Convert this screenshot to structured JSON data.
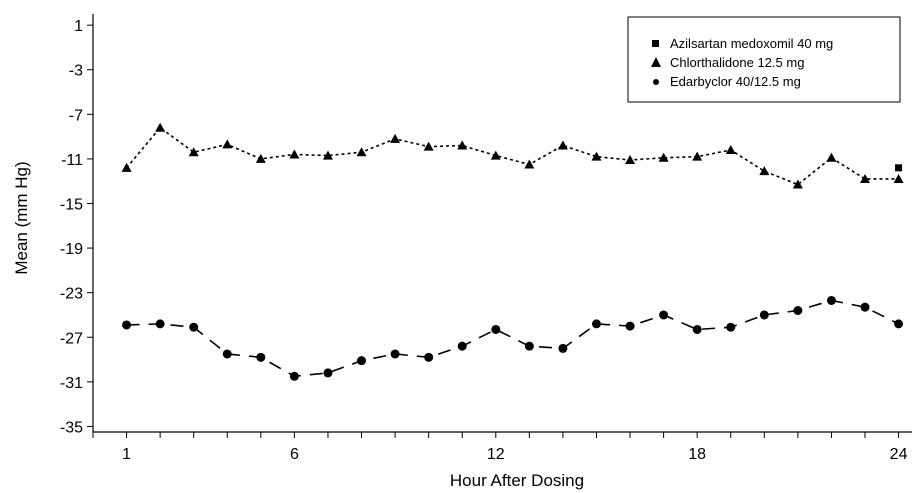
{
  "chart_data": {
    "type": "line",
    "xlabel": "Hour After Dosing",
    "ylabel": "Mean (mm Hg)",
    "xlim": [
      0,
      24.4
    ],
    "ylim": [
      -35.5,
      2
    ],
    "x_ticks": [
      1,
      6,
      12,
      18,
      24
    ],
    "y_ticks": [
      1,
      -3,
      -7,
      -11,
      -15,
      -19,
      -23,
      -27,
      -31,
      -35
    ],
    "legend_position": "top-right",
    "grid": false,
    "series": [
      {
        "name": "Azilsartan medoxomil 40 mg",
        "marker": "square",
        "x": [
          24
        ],
        "y": [
          -11.8
        ]
      },
      {
        "name": "Chlorthalidone 12.5 mg",
        "marker": "triangle",
        "x": [
          1,
          2,
          3,
          4,
          5,
          6,
          7,
          8,
          9,
          10,
          11,
          12,
          13,
          14,
          15,
          16,
          17,
          18,
          19,
          20,
          21,
          22,
          23,
          24
        ],
        "y": [
          -11.8,
          -8.2,
          -10.4,
          -9.7,
          -11.0,
          -10.6,
          -10.7,
          -10.4,
          -9.2,
          -9.9,
          -9.8,
          -10.7,
          -11.5,
          -9.8,
          -10.8,
          -11.1,
          -10.9,
          -10.8,
          -10.2,
          -12.1,
          -13.3,
          -10.9,
          -12.8,
          -12.8
        ]
      },
      {
        "name": "Edarbyclor 40/12.5 mg",
        "marker": "circle",
        "x": [
          1,
          2,
          3,
          4,
          5,
          6,
          7,
          8,
          9,
          10,
          11,
          12,
          13,
          14,
          15,
          16,
          17,
          18,
          19,
          20,
          21,
          22,
          23,
          24
        ],
        "y": [
          -25.9,
          -25.8,
          -26.1,
          -28.5,
          -28.8,
          -30.5,
          -30.2,
          -29.1,
          -28.5,
          -28.8,
          -27.8,
          -26.3,
          -27.8,
          -28.0,
          -25.8,
          -26.0,
          -25.0,
          -26.3,
          -26.1,
          -25.0,
          -24.6,
          -23.7,
          -24.3,
          -25.8
        ]
      }
    ]
  }
}
